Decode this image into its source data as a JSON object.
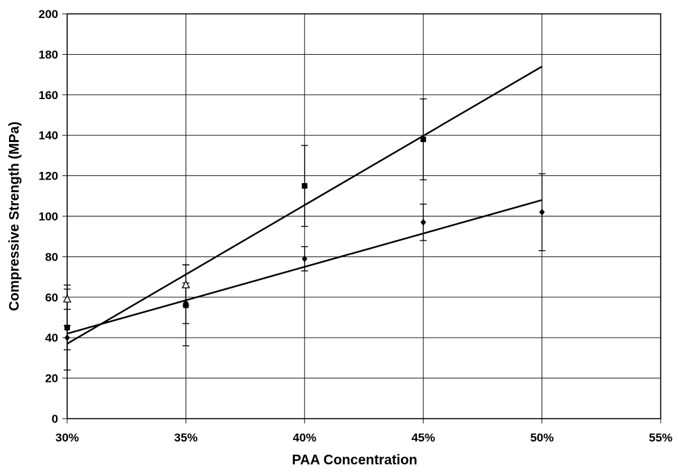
{
  "chart_data": {
    "type": "scatter",
    "title": "",
    "xlabel": "PAA Concentration",
    "ylabel": "Compressive Strength (MPa)",
    "xlim": [
      0.3,
      0.55
    ],
    "ylim": [
      0,
      200
    ],
    "x_ticks": [
      0.3,
      0.35,
      0.4,
      0.45,
      0.5,
      0.55
    ],
    "x_tick_labels": [
      "30%",
      "35%",
      "40%",
      "45%",
      "50%",
      "55%"
    ],
    "y_ticks": [
      0,
      20,
      40,
      60,
      80,
      100,
      120,
      140,
      160,
      180,
      200
    ],
    "y_tick_labels": [
      "0",
      "20",
      "40",
      "60",
      "80",
      "100",
      "120",
      "140",
      "160",
      "180",
      "200"
    ],
    "grid": true,
    "legend": "none",
    "series": [
      {
        "marker": "diamond",
        "x": [
          0.3,
          0.35,
          0.4,
          0.45,
          0.5
        ],
        "y": [
          40,
          57,
          79,
          97,
          102
        ],
        "error": [
          6,
          10,
          6,
          9,
          19
        ],
        "trendline": {
          "x": [
            0.3,
            0.5
          ],
          "y": [
            42,
            108
          ]
        }
      },
      {
        "marker": "square",
        "x": [
          0.3,
          0.35,
          0.4,
          0.45
        ],
        "y": [
          45,
          56,
          115,
          138
        ],
        "error": [
          21,
          20,
          20,
          20
        ],
        "trendline": {
          "x": [
            0.3,
            0.5
          ],
          "y": [
            37,
            174
          ]
        }
      },
      {
        "marker": "triangle-open",
        "x": [
          0.3,
          0.35
        ],
        "y": [
          59,
          66
        ],
        "error": [
          5,
          10
        ]
      }
    ]
  }
}
